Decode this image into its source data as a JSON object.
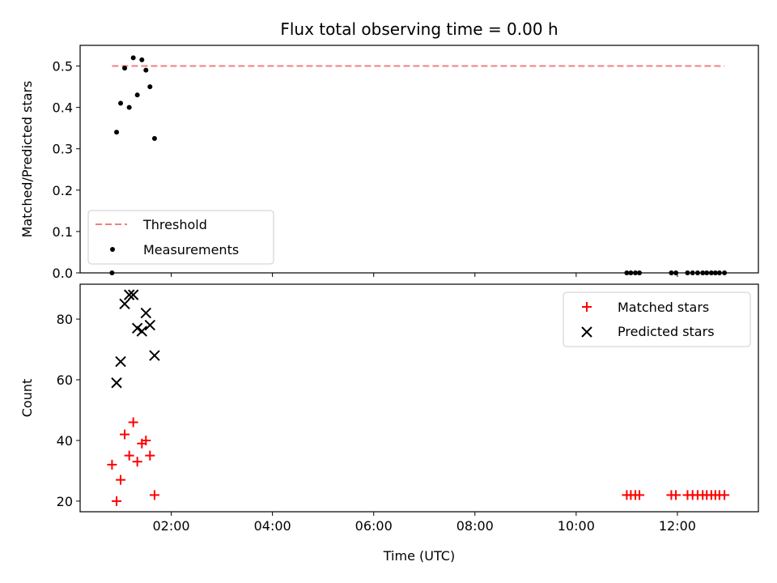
{
  "chart_data": [
    {
      "type": "scatter",
      "title": "Flux total observing time = 0.00 h",
      "xlabel": "",
      "ylabel": "Matched/Predicted stars",
      "xlim": [
        0.2,
        13.6
      ],
      "ylim": [
        0.0,
        0.55
      ],
      "yticks": [
        0.0,
        0.1,
        0.2,
        0.3,
        0.4,
        0.5
      ],
      "ytick_labels": [
        "0.0",
        "0.1",
        "0.2",
        "0.3",
        "0.4",
        "0.5"
      ],
      "xticks": [
        2,
        4,
        6,
        8,
        10,
        12
      ],
      "xtick_labels": [
        "",
        "",
        "",
        "",
        "",
        ""
      ],
      "legend": {
        "placement": "bottom-left",
        "entries": [
          "Threshold",
          "Measurements"
        ]
      },
      "threshold": {
        "name": "Threshold",
        "value": 0.5,
        "x": [
          0.83,
          12.93
        ],
        "color": "#f08080",
        "style": "dashed"
      },
      "series": [
        {
          "name": "Measurements",
          "color": "#000000",
          "marker": "dot",
          "x": [
            0.83,
            0.92,
            1.0,
            1.08,
            1.17,
            1.25,
            1.33,
            1.42,
            1.5,
            1.58,
            1.67,
            11.0,
            11.08,
            11.17,
            11.25,
            11.88,
            11.97,
            12.2,
            12.3,
            12.4,
            12.5,
            12.58,
            12.67,
            12.75,
            12.83,
            12.93
          ],
          "y": [
            0.0,
            0.34,
            0.41,
            0.495,
            0.4,
            0.52,
            0.43,
            0.515,
            0.49,
            0.45,
            0.325,
            0.0,
            0.0,
            0.0,
            0.0,
            0.0,
            0.0,
            0.0,
            0.0,
            0.0,
            0.0,
            0.0,
            0.0,
            0.0,
            0.0,
            0.0
          ]
        }
      ]
    },
    {
      "type": "scatter",
      "title": "",
      "xlabel": "Time (UTC)",
      "ylabel": "Count",
      "xlim": [
        0.2,
        13.6
      ],
      "ylim": [
        16.5,
        91.5
      ],
      "yticks": [
        20,
        40,
        60,
        80
      ],
      "ytick_labels": [
        "20",
        "40",
        "60",
        "80"
      ],
      "xticks": [
        2,
        4,
        6,
        8,
        10,
        12
      ],
      "xtick_labels": [
        "02:00",
        "04:00",
        "06:00",
        "08:00",
        "10:00",
        "12:00"
      ],
      "legend": {
        "placement": "top-right",
        "entries": [
          "Matched stars",
          "Predicted stars"
        ]
      },
      "series": [
        {
          "name": "Matched stars",
          "color": "#ff0000",
          "marker": "plus",
          "x": [
            0.83,
            0.92,
            1.0,
            1.08,
            1.17,
            1.25,
            1.33,
            1.42,
            1.5,
            1.58,
            1.67,
            11.0,
            11.08,
            11.17,
            11.25,
            11.88,
            11.97,
            12.2,
            12.3,
            12.4,
            12.5,
            12.58,
            12.67,
            12.75,
            12.83,
            12.93
          ],
          "y": [
            32,
            20,
            27,
            42,
            35,
            46,
            33,
            39,
            40,
            35,
            22,
            22,
            22,
            22,
            22,
            22,
            22,
            22,
            22,
            22,
            22,
            22,
            22,
            22,
            22,
            22
          ]
        },
        {
          "name": "Predicted stars",
          "color": "#000000",
          "marker": "x",
          "x": [
            0.92,
            1.0,
            1.08,
            1.17,
            1.25,
            1.33,
            1.42,
            1.5,
            1.58,
            1.67
          ],
          "y": [
            59,
            66,
            85,
            88,
            88,
            77,
            76,
            82,
            78,
            68
          ]
        }
      ]
    }
  ]
}
